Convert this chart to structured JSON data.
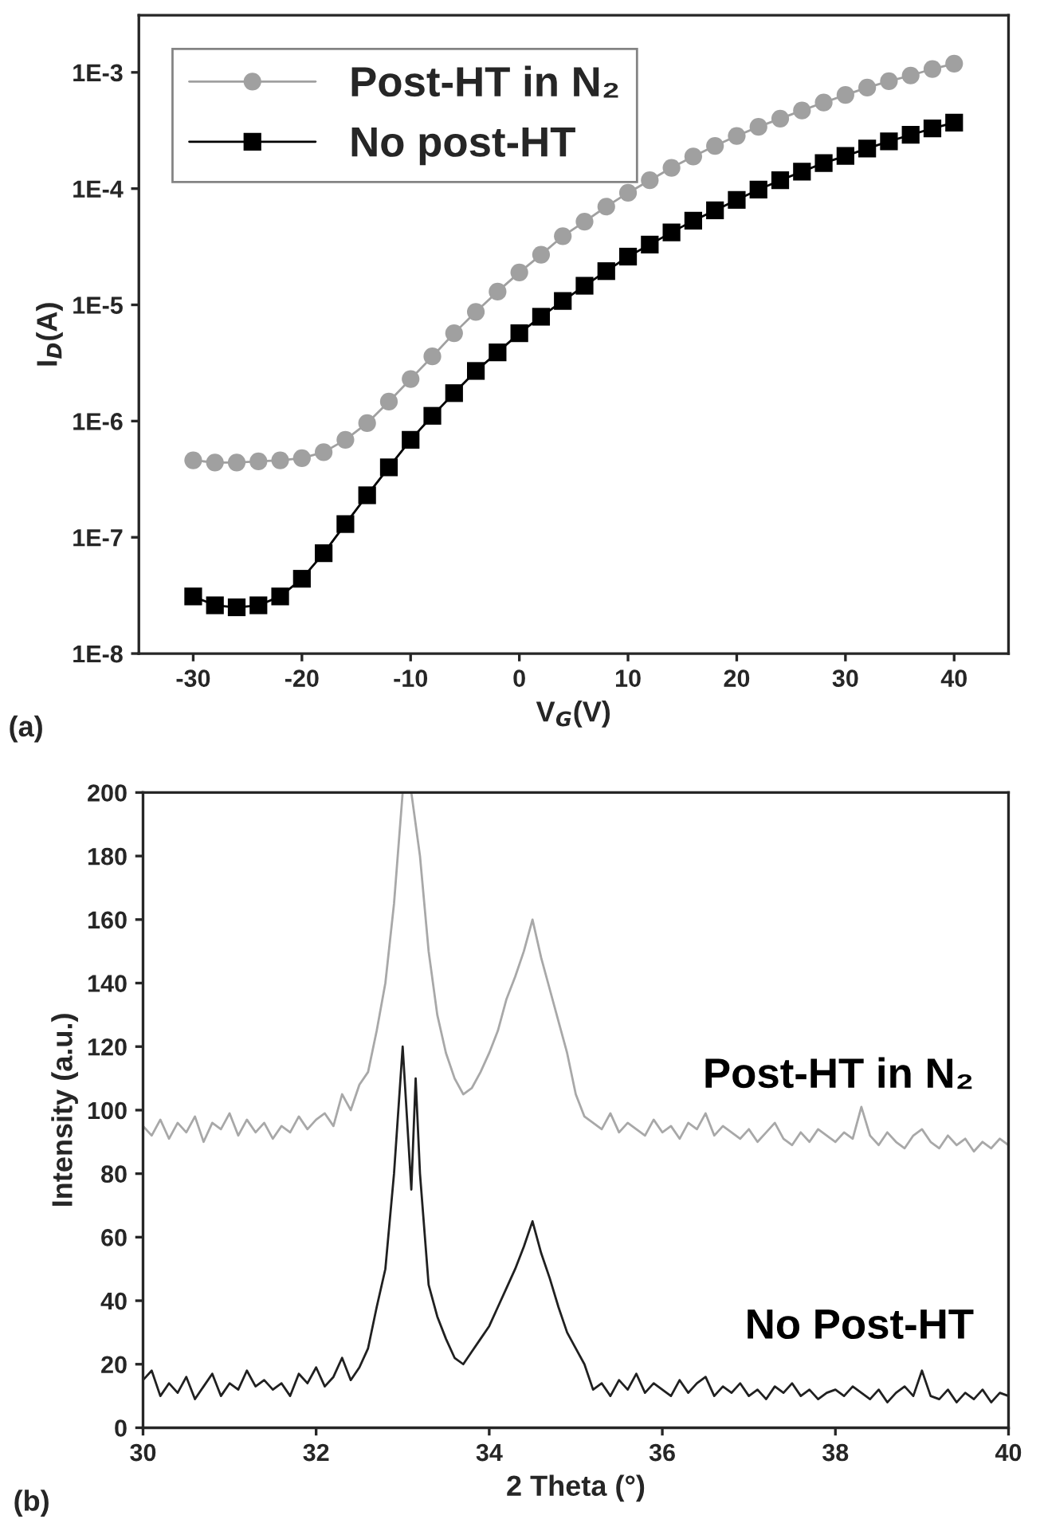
{
  "chart_data": [
    {
      "type": "line",
      "xlabel": "V$_{G}$(V)",
      "ylabel": "I$_{D}$(A)",
      "log": "y",
      "legend": "top left",
      "grid": false,
      "line_style": "solid",
      "xlim": [
        -35,
        45
      ],
      "xticks": [
        -30,
        -20,
        -10,
        0,
        10,
        20,
        30,
        40
      ],
      "ylim": [
        1e-08,
        0.0031
      ],
      "yticks": [
        {
          "value": 1e-08,
          "label": "1E-8"
        },
        {
          "value": 1e-07,
          "label": "1E-7"
        },
        {
          "value": 1e-06,
          "label": "1E-6"
        },
        {
          "value": 1e-05,
          "label": "1E-5"
        },
        {
          "value": 0.0001,
          "label": "1E-4"
        },
        {
          "value": 0.001,
          "label": "1E-3"
        }
      ],
      "x": [
        -30,
        -28,
        -26,
        -24,
        -22,
        -20,
        -18,
        -16,
        -14,
        -12,
        -10,
        -8,
        -6,
        -4,
        -2,
        0,
        2,
        4,
        6,
        8,
        10,
        12,
        14,
        16,
        18,
        20,
        22,
        24,
        26,
        28,
        30,
        32,
        34,
        36,
        38,
        40
      ],
      "annotations": [
        "(a)"
      ],
      "series": [
        {
          "name": "Post-HT in N₂",
          "color": "#a0a0a0",
          "marker": "circle",
          "values": [
            4.6e-07,
            4.4e-07,
            4.4e-07,
            4.5e-07,
            4.6e-07,
            4.8e-07,
            5.4e-07,
            6.9e-07,
            9.6e-07,
            1.47e-06,
            2.3e-06,
            3.6e-06,
            5.7e-06,
            8.7e-06,
            1.3e-05,
            1.9e-05,
            2.7e-05,
            3.9e-05,
            5.2e-05,
            7e-05,
            9.2e-05,
            0.000118,
            0.000151,
            0.000189,
            0.000233,
            0.000284,
            0.00034,
            0.0004,
            0.00047,
            0.00055,
            0.00064,
            0.00074,
            0.00084,
            0.00094,
            0.00107,
            0.00119
          ]
        },
        {
          "name": "No post-HT",
          "color": "#000000",
          "marker": "square",
          "values": [
            3.1e-08,
            2.6e-08,
            2.5e-08,
            2.6e-08,
            3.1e-08,
            4.4e-08,
            7.3e-08,
            1.3e-07,
            2.3e-07,
            4e-07,
            6.9e-07,
            1.11e-06,
            1.74e-06,
            2.7e-06,
            3.9e-06,
            5.7e-06,
            7.9e-06,
            1.08e-05,
            1.46e-05,
            1.95e-05,
            2.6e-05,
            3.3e-05,
            4.2e-05,
            5.3e-05,
            6.5e-05,
            8e-05,
            9.8e-05,
            0.000118,
            0.00014,
            0.000166,
            0.000191,
            0.000221,
            0.000255,
            0.00029,
            0.00033,
            0.00037
          ]
        }
      ]
    },
    {
      "type": "line",
      "xlabel": "2 Theta (°)",
      "ylabel": "Intensity (a.u.)",
      "legend": false,
      "grid": false,
      "line_style": "solid",
      "marker": "none",
      "xlim": [
        30,
        40
      ],
      "xticks": [
        30,
        32,
        34,
        36,
        38,
        40
      ],
      "ylim": [
        0,
        200
      ],
      "yticks": [
        0,
        20,
        40,
        60,
        80,
        100,
        120,
        140,
        160,
        180,
        200
      ],
      "annotations": [
        "(b)"
      ],
      "series": [
        {
          "name": "Post-HT in N₂",
          "color": "#a8a8a8",
          "x": [
            30.0,
            30.1,
            30.2,
            30.3,
            30.4,
            30.5,
            30.6,
            30.7,
            30.8,
            30.9,
            31.0,
            31.1,
            31.2,
            31.3,
            31.4,
            31.5,
            31.6,
            31.7,
            31.8,
            31.9,
            32.0,
            32.1,
            32.2,
            32.3,
            32.4,
            32.5,
            32.6,
            32.7,
            32.8,
            32.9,
            33.0,
            33.1,
            33.2,
            33.3,
            33.4,
            33.5,
            33.6,
            33.7,
            33.8,
            33.9,
            34.0,
            34.1,
            34.2,
            34.3,
            34.4,
            34.5,
            34.6,
            34.7,
            34.8,
            34.9,
            35.0,
            35.1,
            35.2,
            35.3,
            35.4,
            35.5,
            35.6,
            35.7,
            35.8,
            35.9,
            36.0,
            36.1,
            36.2,
            36.3,
            36.4,
            36.5,
            36.6,
            36.7,
            36.8,
            36.9,
            37.0,
            37.1,
            37.2,
            37.3,
            37.4,
            37.5,
            37.6,
            37.7,
            37.8,
            37.9,
            38.0,
            38.1,
            38.2,
            38.3,
            38.4,
            38.5,
            38.6,
            38.7,
            38.8,
            38.9,
            39.0,
            39.1,
            39.2,
            39.3,
            39.4,
            39.5,
            39.6,
            39.7,
            39.8,
            39.9,
            40.0
          ],
          "values": [
            95,
            92,
            97,
            91,
            96,
            93,
            98,
            90,
            96,
            94,
            99,
            92,
            97,
            93,
            96,
            91,
            95,
            93,
            98,
            94,
            97,
            99,
            95,
            105,
            100,
            108,
            112,
            125,
            140,
            165,
            200,
            200,
            180,
            150,
            130,
            118,
            110,
            105,
            107,
            112,
            118,
            125,
            135,
            142,
            150,
            160,
            148,
            138,
            128,
            118,
            105,
            98,
            96,
            94,
            99,
            93,
            96,
            94,
            92,
            97,
            93,
            95,
            91,
            96,
            94,
            99,
            92,
            95,
            93,
            91,
            94,
            90,
            93,
            96,
            91,
            89,
            93,
            90,
            94,
            92,
            90,
            93,
            91,
            101,
            92,
            89,
            93,
            90,
            88,
            92,
            94,
            90,
            88,
            92,
            89,
            91,
            87,
            90,
            88,
            91,
            89
          ]
        },
        {
          "name": "No Post-HT",
          "color": "#202020",
          "x": [
            30.0,
            30.1,
            30.2,
            30.3,
            30.4,
            30.5,
            30.6,
            30.7,
            30.8,
            30.9,
            31.0,
            31.1,
            31.2,
            31.3,
            31.4,
            31.5,
            31.6,
            31.7,
            31.8,
            31.9,
            32.0,
            32.1,
            32.2,
            32.3,
            32.4,
            32.5,
            32.6,
            32.7,
            32.8,
            32.9,
            33.0,
            33.1,
            33.15,
            33.2,
            33.3,
            33.4,
            33.5,
            33.6,
            33.7,
            33.8,
            33.9,
            34.0,
            34.1,
            34.2,
            34.3,
            34.4,
            34.5,
            34.6,
            34.7,
            34.8,
            34.9,
            35.0,
            35.1,
            35.2,
            35.3,
            35.4,
            35.5,
            35.6,
            35.7,
            35.8,
            35.9,
            36.0,
            36.1,
            36.2,
            36.3,
            36.4,
            36.5,
            36.6,
            36.7,
            36.8,
            36.9,
            37.0,
            37.1,
            37.2,
            37.3,
            37.4,
            37.5,
            37.6,
            37.7,
            37.8,
            37.9,
            38.0,
            38.1,
            38.2,
            38.3,
            38.4,
            38.5,
            38.6,
            38.7,
            38.8,
            38.9,
            39.0,
            39.1,
            39.2,
            39.3,
            39.4,
            39.5,
            39.6,
            39.7,
            39.8,
            39.9,
            40.0
          ],
          "values": [
            15,
            18,
            10,
            14,
            11,
            16,
            9,
            13,
            17,
            10,
            14,
            12,
            18,
            13,
            15,
            12,
            14,
            10,
            17,
            14,
            19,
            13,
            16,
            22,
            15,
            19,
            25,
            38,
            50,
            80,
            120,
            75,
            110,
            80,
            45,
            35,
            28,
            22,
            20,
            24,
            28,
            32,
            38,
            44,
            50,
            57,
            65,
            55,
            47,
            38,
            30,
            25,
            20,
            12,
            14,
            10,
            15,
            12,
            17,
            11,
            14,
            12,
            10,
            15,
            11,
            14,
            16,
            10,
            13,
            11,
            14,
            10,
            12,
            9,
            13,
            11,
            14,
            10,
            12,
            9,
            11,
            12,
            10,
            13,
            11,
            9,
            12,
            8,
            11,
            13,
            10,
            18,
            10,
            9,
            12,
            8,
            11,
            9,
            12,
            8,
            11,
            10
          ]
        }
      ]
    }
  ]
}
